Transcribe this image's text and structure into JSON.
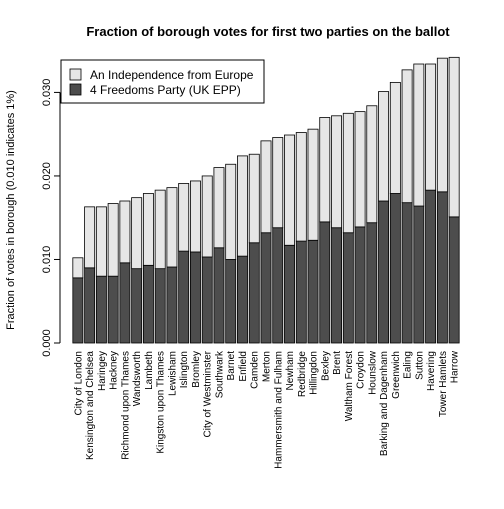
{
  "chart_data": {
    "type": "bar",
    "stacked": true,
    "title": "Fraction of borough votes for first two parties on the ballot",
    "xlabel": "",
    "ylabel": "Fraction of votes in borough (0.010 indicates 1%)",
    "ylim": [
      0,
      0.034
    ],
    "yticks": [
      0.0,
      0.01,
      0.02,
      0.03
    ],
    "ytick_labels": [
      "0.000",
      "0.010",
      "0.020",
      "0.030"
    ],
    "grid": false,
    "legend_position": "top-left",
    "categories": [
      "City of London",
      "Kensington and Chelsea",
      "Haringey",
      "Hackney",
      "Richmond upon Thames",
      "Wandsworth",
      "Lambeth",
      "Kingston upon Thames",
      "Lewisham",
      "Islington",
      "Bromley",
      "City of Westminster",
      "Southwark",
      "Barnet",
      "Enfield",
      "Camden",
      "Merton",
      "Hammersmith and Fulham",
      "Newham",
      "Redbridge",
      "Hillingdon",
      "Bexley",
      "Brent",
      "Waltham Forest",
      "Croydon",
      "Hounslow",
      "Barking and Dagenham",
      "Greenwich",
      "Ealing",
      "Sutton",
      "Havering",
      "Tower Hamlets",
      "Harrow"
    ],
    "series": [
      {
        "name": "4 Freedoms Party (UK EPP)",
        "color": "#4d4d4d",
        "values": [
          0.0078,
          0.009,
          0.008,
          0.008,
          0.0096,
          0.0089,
          0.0093,
          0.0089,
          0.0091,
          0.011,
          0.0109,
          0.0103,
          0.0114,
          0.01,
          0.0104,
          0.012,
          0.0132,
          0.0138,
          0.0117,
          0.0122,
          0.0123,
          0.0145,
          0.0138,
          0.0132,
          0.0139,
          0.0144,
          0.017,
          0.0179,
          0.0168,
          0.0164,
          0.0183,
          0.0181,
          0.0151
        ]
      },
      {
        "name": "An Independence from Europe",
        "color": "#e6e6e6",
        "values": [
          0.0024,
          0.0073,
          0.0083,
          0.0087,
          0.0074,
          0.0085,
          0.0086,
          0.0094,
          0.0095,
          0.0081,
          0.0085,
          0.0097,
          0.0096,
          0.0114,
          0.012,
          0.0106,
          0.011,
          0.0108,
          0.0132,
          0.013,
          0.0133,
          0.0125,
          0.0134,
          0.0143,
          0.0138,
          0.014,
          0.0131,
          0.0133,
          0.0159,
          0.017,
          0.0151,
          0.016,
          0.0191
        ]
      }
    ]
  }
}
